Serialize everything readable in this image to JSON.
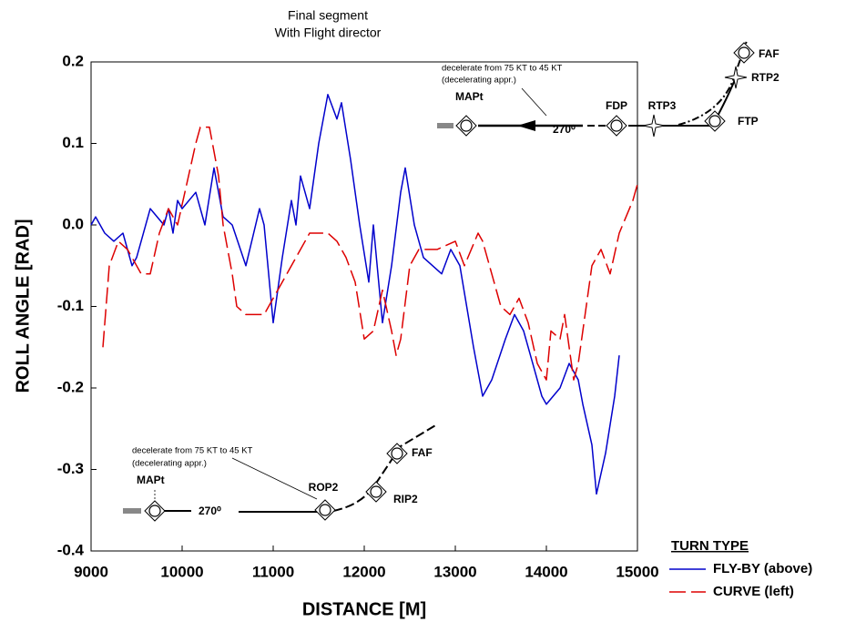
{
  "chart_data": {
    "type": "line",
    "title": "Final segment",
    "subtitle": "With Flight director",
    "x_label": "DISTANCE [M]",
    "y_label": "ROLL ANGLE [RAD]",
    "xlim": [
      9000,
      15000
    ],
    "ylim": [
      -0.4,
      0.2
    ],
    "xticks": [
      9000,
      10000,
      11000,
      12000,
      13000,
      14000,
      15000
    ],
    "yticks": [
      0.2,
      0.1,
      {
        "value": 0,
        "label": "0.0"
      },
      -0.1,
      -0.2,
      -0.3,
      -0.4
    ],
    "legend_title": "TURN TYPE",
    "legend": "lower right outside",
    "series": [
      {
        "name": "FLY-BY (above)",
        "color": "#0000cc",
        "line_style": "solid",
        "x": [
          9000,
          9050,
          9150,
          9250,
          9350,
          9450,
          9500,
          9550,
          9650,
          9800,
          9850,
          9900,
          9950,
          10000,
          10150,
          10250,
          10350,
          10450,
          10550,
          10700,
          10850,
          10900,
          11000,
          11100,
          11200,
          11250,
          11300,
          11400,
          11500,
          11600,
          11700,
          11750,
          11850,
          11950,
          12050,
          12100,
          12200,
          12300,
          12400,
          12450,
          12550,
          12650,
          12850,
          12950,
          13050,
          13200,
          13300,
          13400,
          13550,
          13650,
          13750,
          13850,
          13950,
          14000,
          14150,
          14250,
          14350,
          14400,
          14500,
          14550,
          14650,
          14750,
          14800
        ],
        "values": [
          0.0,
          0.01,
          -0.01,
          -0.02,
          -0.01,
          -0.05,
          -0.04,
          -0.02,
          0.02,
          0.0,
          0.02,
          -0.01,
          0.03,
          0.02,
          0.04,
          0.0,
          0.07,
          0.01,
          0.0,
          -0.05,
          0.02,
          0.0,
          -0.12,
          -0.04,
          0.03,
          0.0,
          0.06,
          0.02,
          0.1,
          0.16,
          0.13,
          0.15,
          0.08,
          0.0,
          -0.07,
          0.0,
          -0.12,
          -0.05,
          0.04,
          0.07,
          0.0,
          -0.04,
          -0.06,
          -0.03,
          -0.05,
          -0.15,
          -0.21,
          -0.19,
          -0.14,
          -0.11,
          -0.13,
          -0.17,
          -0.21,
          -0.22,
          -0.2,
          -0.17,
          -0.19,
          -0.22,
          -0.27,
          -0.33,
          -0.28,
          -0.21,
          -0.16
        ]
      },
      {
        "name": "CURVE (left)",
        "color": "#dd0000",
        "line_style": "dashed",
        "x": [
          9130,
          9200,
          9300,
          9400,
          9550,
          9650,
          9750,
          9850,
          9950,
          10050,
          10150,
          10200,
          10300,
          10400,
          10450,
          10550,
          10600,
          10700,
          10900,
          10950,
          11050,
          11150,
          11300,
          11400,
          11600,
          11700,
          11800,
          11900,
          12000,
          12100,
          12200,
          12300,
          12350,
          12400,
          12500,
          12600,
          12800,
          13000,
          13100,
          13250,
          13300,
          13400,
          13500,
          13600,
          13700,
          13800,
          13900,
          14000,
          14050,
          14150,
          14200,
          14300,
          14350,
          14400,
          14500,
          14600,
          14700,
          14800,
          14950,
          15000
        ],
        "values": [
          -0.15,
          -0.05,
          -0.02,
          -0.03,
          -0.06,
          -0.06,
          -0.01,
          0.02,
          0.0,
          0.05,
          0.1,
          0.12,
          0.12,
          0.06,
          0.0,
          -0.06,
          -0.1,
          -0.11,
          -0.11,
          -0.1,
          -0.08,
          -0.06,
          -0.03,
          -0.01,
          -0.01,
          -0.02,
          -0.04,
          -0.07,
          -0.14,
          -0.13,
          -0.08,
          -0.13,
          -0.16,
          -0.14,
          -0.05,
          -0.03,
          -0.03,
          -0.02,
          -0.05,
          -0.01,
          -0.02,
          -0.06,
          -0.1,
          -0.11,
          -0.09,
          -0.12,
          -0.17,
          -0.19,
          -0.13,
          -0.14,
          -0.11,
          -0.19,
          -0.17,
          -0.13,
          -0.05,
          -0.03,
          -0.06,
          -0.01,
          0.03,
          0.05
        ]
      }
    ],
    "annotations": {
      "top_inset": {
        "note": "decelerate from 75 KT to 45 KT",
        "note2": "(decelerating appr.)",
        "mapt": "MAPt",
        "heading": "270⁰",
        "fdp": "FDP",
        "rtp3": "RTP3",
        "ftp": "FTP",
        "faf": "FAF",
        "rtp2": "RTP2"
      },
      "bottom_inset": {
        "note": "decelerate from 75 KT to 45 KT",
        "note2": "(decelerating appr.)",
        "mapt": "MAPt",
        "heading": "270⁰",
        "rop2": "ROP2",
        "rip2": "RIP2",
        "faf": "FAF"
      }
    }
  }
}
